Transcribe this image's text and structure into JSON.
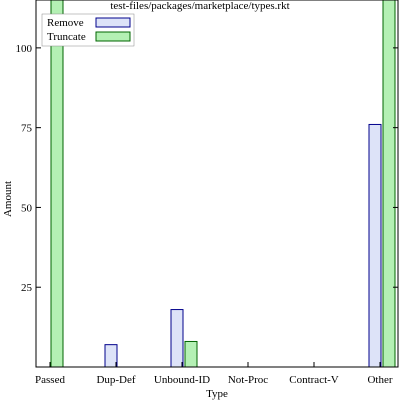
{
  "chart_data": {
    "type": "bar",
    "title": "test-files/packages/marketplace/types.rkt",
    "xlabel": "Type",
    "ylabel": "Amount",
    "categories": [
      "Passed",
      "Dup-Def",
      "Unbound-ID",
      "Not-Proc",
      "Contract-V",
      "Other"
    ],
    "series": [
      {
        "name": "Remove",
        "values": [
          0,
          7,
          18,
          0,
          0,
          76
        ],
        "color": "#dde3f8",
        "stroke": "#00008b"
      },
      {
        "name": "Truncate",
        "values": [
          120,
          0,
          8,
          0,
          0,
          115
        ],
        "color": "#b4f0b4",
        "stroke": "#006400"
      }
    ],
    "ylim": [
      0,
      115
    ],
    "yticks": [
      25,
      50,
      75,
      100
    ],
    "legend": "top-left",
    "grid": false
  }
}
